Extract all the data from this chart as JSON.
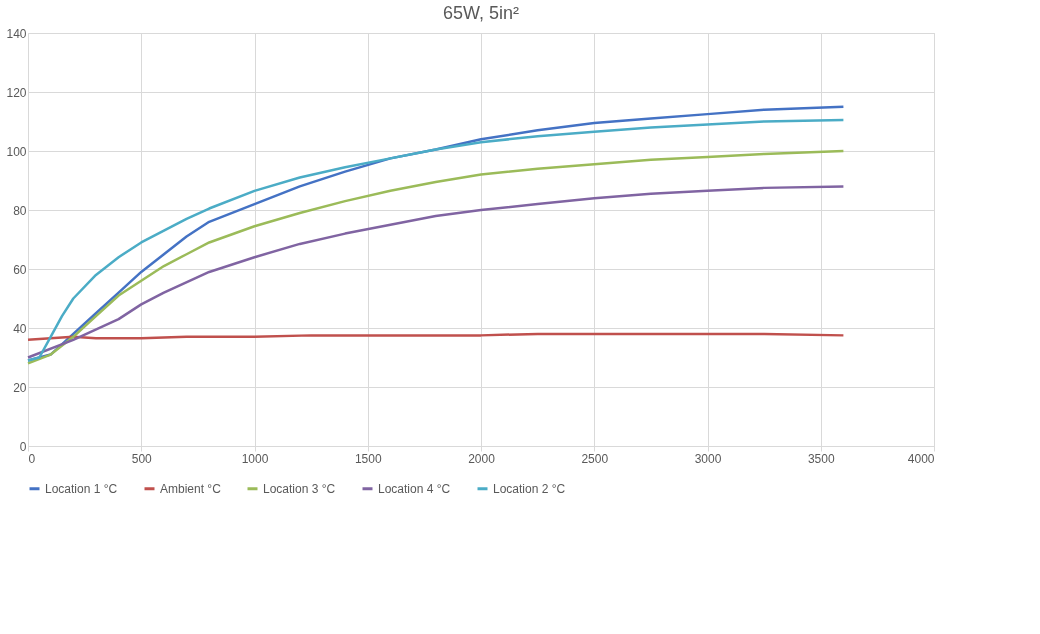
{
  "chart_data": {
    "type": "line",
    "title": "65W, 5in²",
    "xlim": [
      0,
      4000
    ],
    "xticks": [
      0,
      500,
      1000,
      1500,
      2000,
      2500,
      3000,
      3500,
      4000
    ],
    "ylim": [
      0,
      140
    ],
    "yticks": [
      0,
      20,
      40,
      60,
      80,
      100,
      120,
      140
    ],
    "grid": true,
    "legend": "bottom",
    "marker": "none",
    "line_style": "solid",
    "series": [
      {
        "name": "Location 1 °C",
        "color": "#4472c4",
        "x": [
          0,
          100,
          200,
          300,
          400,
          500,
          600,
          700,
          800,
          1000,
          1200,
          1400,
          1600,
          1800,
          2000,
          2250,
          2500,
          2750,
          3000,
          3250,
          3600
        ],
        "values": [
          29,
          31,
          38,
          45,
          52,
          59,
          65,
          71,
          76,
          82,
          88,
          93,
          97.5,
          100.5,
          104,
          107,
          109.5,
          111,
          112.5,
          114,
          115
        ]
      },
      {
        "name": "Ambient °C",
        "color": "#c0504d",
        "x": [
          0,
          100,
          200,
          300,
          500,
          700,
          1000,
          1250,
          1500,
          1750,
          2000,
          2250,
          2500,
          2750,
          3000,
          3250,
          3600
        ],
        "values": [
          36,
          36.5,
          37,
          36.5,
          36.5,
          37,
          37,
          37.5,
          37.5,
          37.5,
          37.5,
          38,
          38,
          38,
          38,
          38,
          37.5
        ]
      },
      {
        "name": "Location 3 °C",
        "color": "#9bbb59",
        "x": [
          0,
          100,
          200,
          300,
          400,
          500,
          600,
          700,
          800,
          1000,
          1200,
          1400,
          1600,
          1800,
          2000,
          2250,
          2500,
          2750,
          3000,
          3250,
          3600
        ],
        "values": [
          28,
          31,
          37,
          44,
          51,
          56,
          61,
          65,
          69,
          74.5,
          79,
          83,
          86.5,
          89.5,
          92,
          94,
          95.5,
          97,
          98,
          99,
          100
        ]
      },
      {
        "name": "Location 4 °C",
        "color": "#8064a2",
        "x": [
          0,
          200,
          400,
          500,
          600,
          800,
          1000,
          1200,
          1400,
          1600,
          1800,
          2000,
          2250,
          2500,
          2750,
          3000,
          3250,
          3600
        ],
        "values": [
          30,
          36,
          43,
          48,
          52,
          59,
          64,
          68.5,
          72,
          75,
          78,
          80,
          82,
          84,
          85.5,
          86.5,
          87.5,
          88
        ]
      },
      {
        "name": "Location 2 °C",
        "color": "#4bacc6",
        "x": [
          0,
          50,
          100,
          150,
          200,
          300,
          400,
          500,
          600,
          700,
          800,
          1000,
          1200,
          1400,
          1600,
          1800,
          2000,
          2250,
          2500,
          2750,
          3000,
          3250,
          3600
        ],
        "values": [
          29,
          30,
          37,
          44,
          50,
          58,
          64,
          69,
          73,
          77,
          80.5,
          86.5,
          91,
          94.5,
          97.5,
          100.5,
          103,
          105,
          106.5,
          108,
          109,
          110,
          110.5
        ]
      }
    ]
  }
}
